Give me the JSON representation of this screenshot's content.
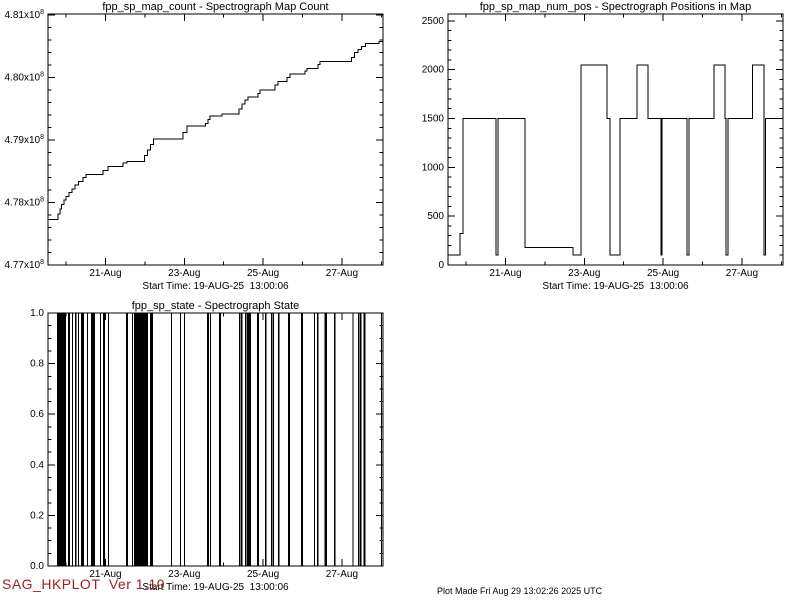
{
  "footer": {
    "version": "SAG_HKPLOT  Ver 1.10",
    "version_color": "#a02020",
    "plot_made": "Plot Made Fri Aug 29 13:02:26 2025 UTC"
  },
  "chart_data": [
    {
      "id": "map_count",
      "type": "line",
      "title": "fpp_sp_map_count - Spectrograph Map Count",
      "xlabel": "Start Time: 19-AUG-25  13:00:06",
      "ylabel": "",
      "grid": false,
      "xlim": [
        0,
        8.5
      ],
      "ylim": [
        4.77,
        4.8102
      ],
      "y_unit": "x1e8",
      "x_major": [
        {
          "v": 1.458,
          "label": "21-Aug"
        },
        {
          "v": 3.458,
          "label": "23-Aug"
        },
        {
          "v": 5.458,
          "label": "25-Aug"
        },
        {
          "v": 7.458,
          "label": "27-Aug"
        }
      ],
      "x_minor": [
        0.458,
        2.458,
        4.458,
        6.458,
        8.458
      ],
      "y_major": [
        {
          "v": 4.77,
          "label": "4.77x10",
          "exp": "8"
        },
        {
          "v": 4.78,
          "label": "4.78x10",
          "exp": "8"
        },
        {
          "v": 4.79,
          "label": "4.79x10",
          "exp": "8"
        },
        {
          "v": 4.8,
          "label": "4.80x10",
          "exp": "8"
        },
        {
          "v": 4.81,
          "label": "4.81x10",
          "exp": "8"
        }
      ],
      "y_minor_step": 0.002,
      "step_points": [
        [
          0,
          4.7773
        ],
        [
          0.26,
          4.7782
        ],
        [
          0.3,
          4.779
        ],
        [
          0.34,
          4.7797
        ],
        [
          0.4,
          4.7804
        ],
        [
          0.46,
          4.781
        ],
        [
          0.53,
          4.7816
        ],
        [
          0.61,
          4.7822
        ],
        [
          0.69,
          4.7828
        ],
        [
          0.78,
          4.7834
        ],
        [
          0.89,
          4.784
        ],
        [
          0.97,
          4.7845
        ],
        [
          1.4,
          4.7851
        ],
        [
          1.52,
          4.7858
        ],
        [
          1.9,
          4.7863
        ],
        [
          2.0,
          4.7866
        ],
        [
          2.45,
          4.7875
        ],
        [
          2.52,
          4.7884
        ],
        [
          2.6,
          4.7893
        ],
        [
          2.68,
          4.7902
        ],
        [
          3.43,
          4.7912
        ],
        [
          3.53,
          4.7923
        ],
        [
          3.99,
          4.7927
        ],
        [
          4.06,
          4.7933
        ],
        [
          4.11,
          4.7939
        ],
        [
          4.42,
          4.7942
        ],
        [
          4.85,
          4.795
        ],
        [
          4.92,
          4.7958
        ],
        [
          5.0,
          4.7964
        ],
        [
          5.08,
          4.7969
        ],
        [
          5.33,
          4.7975
        ],
        [
          5.38,
          4.798
        ],
        [
          5.76,
          4.7988
        ],
        [
          5.84,
          4.7994
        ],
        [
          6.07,
          4.8
        ],
        [
          6.14,
          4.8006
        ],
        [
          6.52,
          4.8011
        ],
        [
          6.57,
          4.8015
        ],
        [
          6.85,
          4.8021
        ],
        [
          6.9,
          4.8026
        ],
        [
          7.7,
          4.8032
        ],
        [
          7.78,
          4.804
        ],
        [
          7.86,
          4.8045
        ],
        [
          7.95,
          4.805
        ],
        [
          8.05,
          4.8055
        ],
        [
          8.4,
          4.8058
        ]
      ]
    },
    {
      "id": "num_pos",
      "type": "line",
      "title": "fpp_sp_map_num_pos - Spectrograph Positions in Map",
      "xlabel": "Start Time: 19-AUG-25  13:00:06",
      "ylabel": "",
      "grid": false,
      "xlim": [
        0,
        8.5
      ],
      "ylim": [
        0,
        2570
      ],
      "x_major": [
        {
          "v": 1.458,
          "label": "21-Aug"
        },
        {
          "v": 3.458,
          "label": "23-Aug"
        },
        {
          "v": 5.458,
          "label": "25-Aug"
        },
        {
          "v": 7.458,
          "label": "27-Aug"
        }
      ],
      "x_minor": [
        0.458,
        2.458,
        4.458,
        6.458,
        8.458
      ],
      "y_major": [
        {
          "v": 0,
          "label": "0"
        },
        {
          "v": 500,
          "label": "500"
        },
        {
          "v": 1000,
          "label": "1000"
        },
        {
          "v": 1500,
          "label": "1500"
        },
        {
          "v": 2000,
          "label": "2000"
        },
        {
          "v": 2500,
          "label": "2500"
        }
      ],
      "y_minor_step": 100,
      "step_points": [
        [
          0,
          100
        ],
        [
          0.3,
          320
        ],
        [
          0.38,
          1500
        ],
        [
          1.22,
          100
        ],
        [
          1.27,
          1500
        ],
        [
          1.95,
          180
        ],
        [
          3.17,
          100
        ],
        [
          3.38,
          2050
        ],
        [
          4.04,
          1500
        ],
        [
          4.11,
          100
        ],
        [
          4.37,
          1500
        ],
        [
          4.8,
          2050
        ],
        [
          5.08,
          1500
        ],
        [
          5.41,
          100
        ],
        [
          5.43,
          1500
        ],
        [
          6.07,
          100
        ],
        [
          6.12,
          1500
        ],
        [
          6.75,
          2050
        ],
        [
          7.03,
          1500
        ],
        [
          7.06,
          100
        ],
        [
          7.11,
          1500
        ],
        [
          7.72,
          2050
        ],
        [
          8.02,
          100
        ],
        [
          8.05,
          1500
        ]
      ]
    },
    {
      "id": "state",
      "type": "bar",
      "title": "fpp_sp_state - Spectrograph State",
      "xlabel": "Start Time: 19-AUG-25  13:00:06",
      "ylabel": "",
      "grid": false,
      "xlim": [
        0,
        8.5
      ],
      "ylim": [
        0,
        1.0
      ],
      "x_major": [
        {
          "v": 1.458,
          "label": "21-Aug"
        },
        {
          "v": 3.458,
          "label": "23-Aug"
        },
        {
          "v": 5.458,
          "label": "25-Aug"
        },
        {
          "v": 7.458,
          "label": "27-Aug"
        }
      ],
      "x_minor": [
        0.458,
        2.458,
        4.458,
        6.458,
        8.458
      ],
      "y_major": [
        {
          "v": 0.0,
          "label": "0.0"
        },
        {
          "v": 0.2,
          "label": "0.2"
        },
        {
          "v": 0.4,
          "label": "0.4"
        },
        {
          "v": 0.6,
          "label": "0.6"
        },
        {
          "v": 0.8,
          "label": "0.8"
        },
        {
          "v": 1.0,
          "label": "1.0"
        }
      ],
      "y_minor_step": 0.05,
      "bar_value": 1.0,
      "bars": [
        [
          0.23,
          0.46
        ],
        [
          0.51,
          0.56
        ],
        [
          0.61,
          0.63
        ],
        [
          0.69,
          0.72
        ],
        [
          0.76,
          0.78
        ],
        [
          0.84,
          0.91
        ],
        [
          0.99,
          1.01
        ],
        [
          1.09,
          1.19
        ],
        [
          1.32,
          1.34
        ],
        [
          1.4,
          1.45
        ],
        [
          1.52,
          1.54
        ],
        [
          1.98,
          2.03
        ],
        [
          2.13,
          2.15
        ],
        [
          2.18,
          2.54
        ],
        [
          2.59,
          2.67
        ],
        [
          3.12,
          3.14
        ],
        [
          3.35,
          3.37
        ],
        [
          3.45,
          3.47
        ],
        [
          4.04,
          4.09
        ],
        [
          4.11,
          4.14
        ],
        [
          4.34,
          4.39
        ],
        [
          4.85,
          4.87
        ],
        [
          4.9,
          4.92
        ],
        [
          5.0,
          5.02
        ],
        [
          5.05,
          5.15
        ],
        [
          5.3,
          5.36
        ],
        [
          5.51,
          5.53
        ],
        [
          5.66,
          5.69
        ],
        [
          5.71,
          5.74
        ],
        [
          5.84,
          5.86
        ],
        [
          6.09,
          6.14
        ],
        [
          6.42,
          6.47
        ],
        [
          6.75,
          6.77
        ],
        [
          6.83,
          6.85
        ],
        [
          7.01,
          7.08
        ],
        [
          7.26,
          7.28
        ],
        [
          7.72,
          7.75
        ],
        [
          7.87,
          7.9
        ],
        [
          7.92,
          7.95
        ],
        [
          8.0,
          8.05
        ],
        [
          8.45,
          8.47
        ]
      ]
    }
  ]
}
